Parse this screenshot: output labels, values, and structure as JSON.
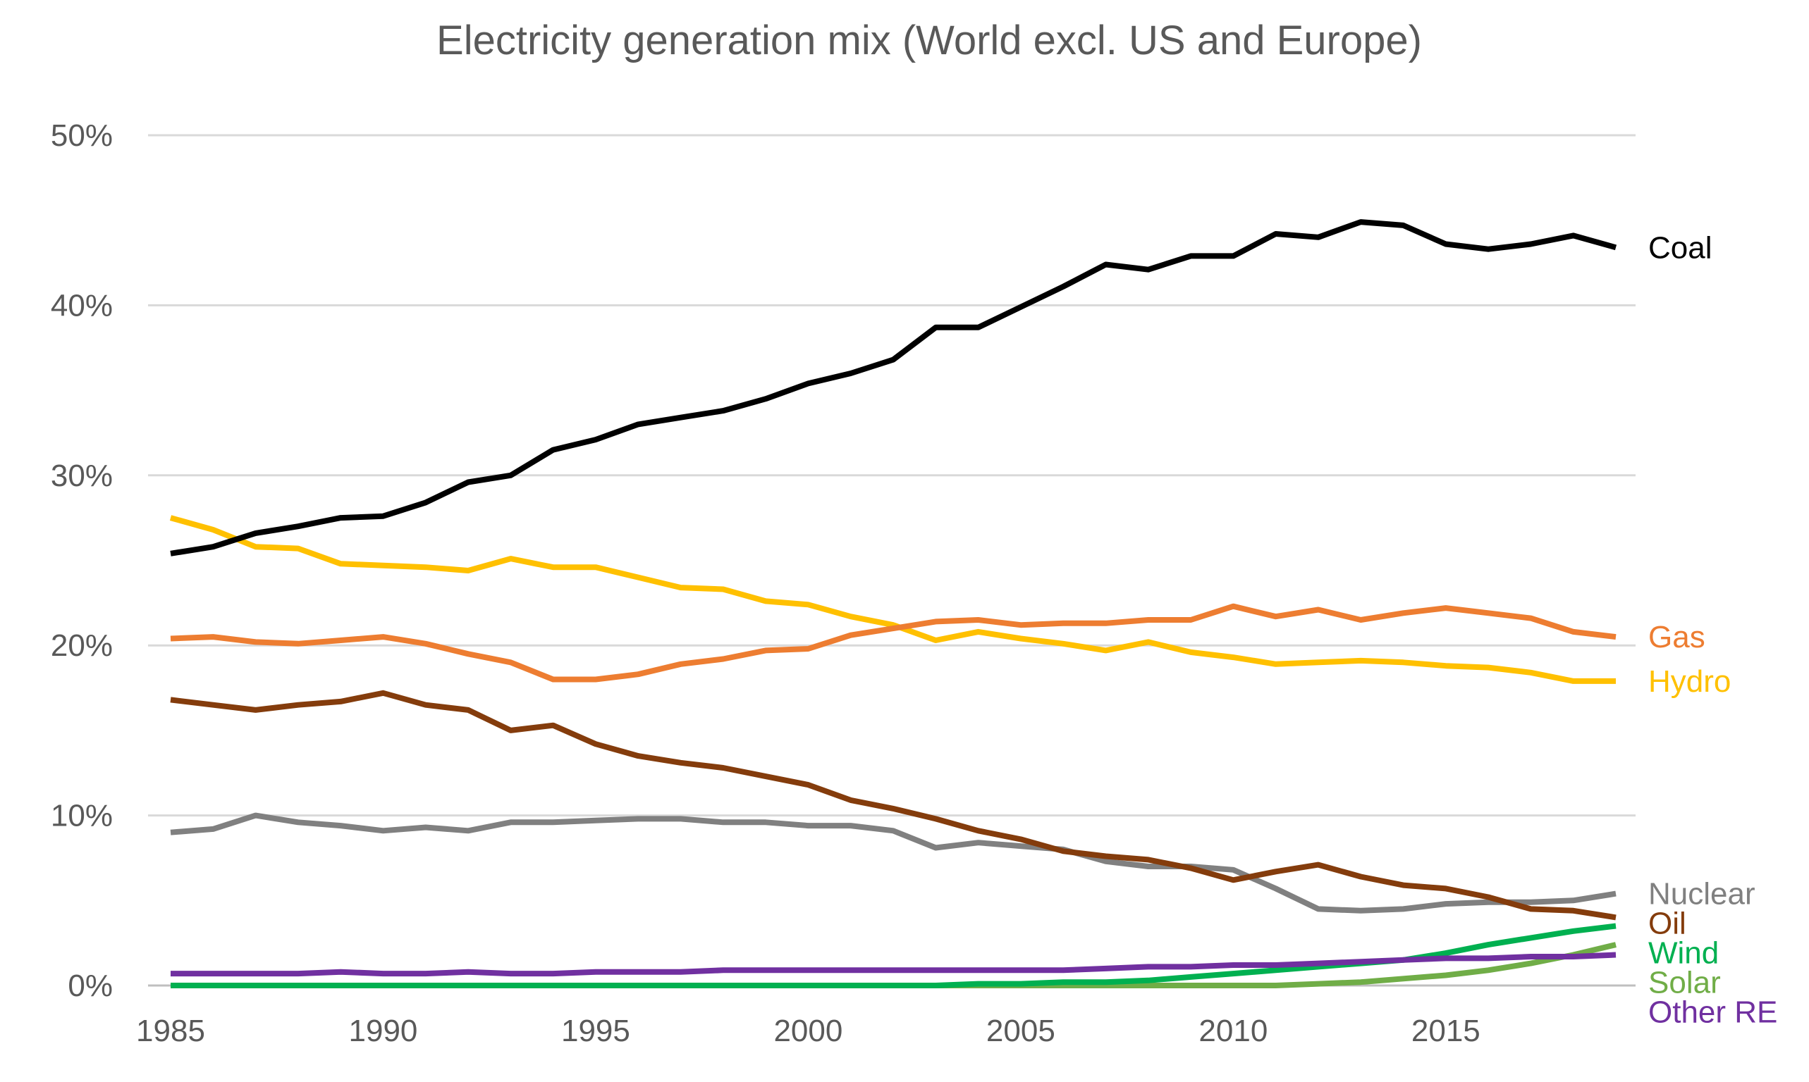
{
  "chart_data": {
    "type": "line",
    "title": "Electricity generation mix (World excl. US and Europe)",
    "xlabel": "",
    "ylabel": "",
    "xlim": [
      1985,
      2019
    ],
    "ylim": [
      0,
      0.5
    ],
    "x_ticks": [
      1985,
      1990,
      1995,
      2000,
      2005,
      2010,
      2015
    ],
    "x_tick_labels": [
      "1985",
      "1990",
      "1995",
      "2000",
      "2005",
      "2010",
      "2015"
    ],
    "y_ticks": [
      0,
      0.1,
      0.2,
      0.3,
      0.4,
      0.5
    ],
    "y_tick_labels": [
      "0%",
      "10%",
      "20%",
      "30%",
      "40%",
      "50%"
    ],
    "grid": true,
    "legend": "direct labels at right end of lines",
    "x": [
      1985,
      1986,
      1987,
      1988,
      1989,
      1990,
      1991,
      1992,
      1993,
      1994,
      1995,
      1996,
      1997,
      1998,
      1999,
      2000,
      2001,
      2002,
      2003,
      2004,
      2005,
      2006,
      2007,
      2008,
      2009,
      2010,
      2011,
      2012,
      2013,
      2014,
      2015,
      2016,
      2017,
      2018,
      2019
    ],
    "series": [
      {
        "name": "Coal",
        "color": "#000000",
        "values": [
          0.254,
          0.258,
          0.266,
          0.27,
          0.275,
          0.276,
          0.284,
          0.296,
          0.3,
          0.315,
          0.321,
          0.33,
          0.334,
          0.338,
          0.345,
          0.354,
          0.36,
          0.368,
          0.387,
          0.387,
          0.399,
          0.411,
          0.424,
          0.421,
          0.429,
          0.429,
          0.442,
          0.44,
          0.449,
          0.447,
          0.436,
          0.433,
          0.436,
          0.441,
          0.434
        ]
      },
      {
        "name": "Gas",
        "color": "#ED7D31",
        "values": [
          0.204,
          0.205,
          0.202,
          0.201,
          0.203,
          0.205,
          0.201,
          0.195,
          0.19,
          0.18,
          0.18,
          0.183,
          0.189,
          0.192,
          0.197,
          0.198,
          0.206,
          0.21,
          0.214,
          0.215,
          0.212,
          0.213,
          0.213,
          0.215,
          0.215,
          0.223,
          0.217,
          0.221,
          0.215,
          0.219,
          0.222,
          0.219,
          0.216,
          0.208,
          0.205
        ]
      },
      {
        "name": "Hydro",
        "color": "#FFC000",
        "values": [
          0.275,
          0.268,
          0.258,
          0.257,
          0.248,
          0.247,
          0.246,
          0.244,
          0.251,
          0.246,
          0.246,
          0.24,
          0.234,
          0.233,
          0.226,
          0.224,
          0.217,
          0.212,
          0.203,
          0.208,
          0.204,
          0.201,
          0.197,
          0.202,
          0.196,
          0.193,
          0.189,
          0.19,
          0.191,
          0.19,
          0.188,
          0.187,
          0.184,
          0.179,
          0.179
        ]
      },
      {
        "name": "Nuclear",
        "color": "#808080",
        "values": [
          0.09,
          0.092,
          0.1,
          0.096,
          0.094,
          0.091,
          0.093,
          0.091,
          0.096,
          0.096,
          0.097,
          0.098,
          0.098,
          0.096,
          0.096,
          0.094,
          0.094,
          0.091,
          0.081,
          0.084,
          0.082,
          0.08,
          0.073,
          0.07,
          0.07,
          0.068,
          0.057,
          0.045,
          0.044,
          0.045,
          0.048,
          0.049,
          0.049,
          0.05,
          0.054
        ]
      },
      {
        "name": "Oil",
        "color": "#843C0C",
        "values": [
          0.168,
          0.165,
          0.162,
          0.165,
          0.167,
          0.172,
          0.165,
          0.162,
          0.15,
          0.153,
          0.142,
          0.135,
          0.131,
          0.128,
          0.123,
          0.118,
          0.109,
          0.104,
          0.098,
          0.091,
          0.086,
          0.079,
          0.076,
          0.074,
          0.069,
          0.062,
          0.067,
          0.071,
          0.064,
          0.059,
          0.057,
          0.052,
          0.045,
          0.044,
          0.04
        ]
      },
      {
        "name": "Wind",
        "color": "#00B050",
        "values": [
          0.0,
          0.0,
          0.0,
          0.0,
          0.0,
          0.0,
          0.0,
          0.0,
          0.0,
          0.0,
          0.0,
          0.0,
          0.0,
          0.0,
          0.0,
          0.0,
          0.0,
          0.0,
          0.0,
          0.001,
          0.001,
          0.002,
          0.002,
          0.003,
          0.005,
          0.007,
          0.009,
          0.011,
          0.013,
          0.015,
          0.019,
          0.024,
          0.028,
          0.032,
          0.035
        ]
      },
      {
        "name": "Solar",
        "color": "#70AD47",
        "values": [
          0.0,
          0.0,
          0.0,
          0.0,
          0.0,
          0.0,
          0.0,
          0.0,
          0.0,
          0.0,
          0.0,
          0.0,
          0.0,
          0.0,
          0.0,
          0.0,
          0.0,
          0.0,
          0.0,
          0.0,
          0.0,
          0.0,
          0.0,
          0.0,
          0.0,
          0.0,
          0.0,
          0.001,
          0.002,
          0.004,
          0.006,
          0.009,
          0.013,
          0.018,
          0.024
        ]
      },
      {
        "name": "Other RE",
        "color": "#7030A0",
        "values": [
          0.007,
          0.007,
          0.007,
          0.007,
          0.008,
          0.007,
          0.007,
          0.008,
          0.007,
          0.007,
          0.008,
          0.008,
          0.008,
          0.009,
          0.009,
          0.009,
          0.009,
          0.009,
          0.009,
          0.009,
          0.009,
          0.009,
          0.01,
          0.011,
          0.011,
          0.012,
          0.012,
          0.013,
          0.014,
          0.015,
          0.016,
          0.016,
          0.017,
          0.017,
          0.018
        ]
      }
    ]
  }
}
